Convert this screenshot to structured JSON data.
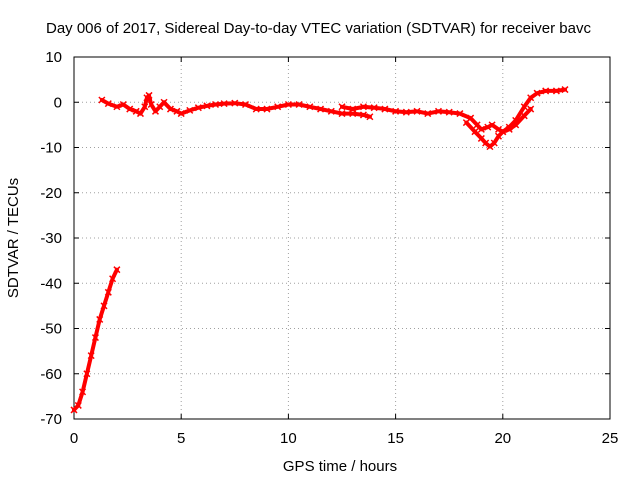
{
  "chart_data": {
    "type": "line",
    "title": "Day 006 of 2017, Sidereal Day-to-day VTEC variation (SDTVAR) for receiver bavc",
    "xlabel": "GPS time / hours",
    "ylabel": "SDTVAR / TECUs",
    "xlim": [
      0,
      25
    ],
    "ylim": [
      -70,
      10
    ],
    "xticks": [
      0,
      5,
      10,
      15,
      20,
      25
    ],
    "yticks": [
      10,
      0,
      -10,
      -20,
      -30,
      -40,
      -50,
      -60,
      -70
    ],
    "grid": true,
    "legend": "none",
    "series_color": "#ff0000",
    "series": [
      {
        "name": "segment-1",
        "x": [
          0.0,
          0.2,
          0.4,
          0.6,
          0.8,
          1.0,
          1.2,
          1.4,
          1.6,
          1.8,
          2.0
        ],
        "y": [
          -68,
          -67,
          -64,
          -60,
          -56,
          -52,
          -48,
          -45,
          -42,
          -39,
          -37
        ]
      },
      {
        "name": "segment-2",
        "x": [
          1.3,
          1.6,
          2.0,
          2.3,
          2.6,
          2.9,
          3.1,
          3.3,
          3.4,
          3.5,
          3.6,
          3.8,
          4.0,
          4.2,
          4.5,
          4.8,
          5.0,
          5.4,
          5.8,
          6.2,
          6.6,
          7.0,
          7.5,
          8.0,
          8.5,
          9.0,
          9.5,
          10.0,
          10.5,
          11.0,
          11.5,
          12.0,
          12.5,
          13.0,
          13.5,
          13.8
        ],
        "y": [
          0.5,
          -0.3,
          -1.0,
          -0.5,
          -1.5,
          -2.0,
          -2.5,
          -1.0,
          1.0,
          1.5,
          -0.5,
          -2.0,
          -1.0,
          0.0,
          -1.5,
          -2.0,
          -2.5,
          -1.8,
          -1.2,
          -0.8,
          -0.5,
          -0.3,
          -0.2,
          -0.5,
          -1.5,
          -1.5,
          -1.0,
          -0.5,
          -0.5,
          -1.0,
          -1.5,
          -2.0,
          -2.5,
          -2.5,
          -2.8,
          -3.2
        ]
      },
      {
        "name": "segment-3",
        "x": [
          12.5,
          13.0,
          13.5,
          14.0,
          14.5,
          15.0,
          15.5,
          16.0,
          16.5,
          17.0,
          17.5,
          18.0,
          18.5,
          18.8,
          19.0,
          19.3,
          19.5,
          19.8,
          20.0,
          20.3,
          20.6,
          21.0,
          21.3,
          21.6,
          22.0,
          22.5,
          22.9
        ],
        "y": [
          -1.0,
          -1.5,
          -1.0,
          -1.2,
          -1.5,
          -2.0,
          -2.2,
          -2.0,
          -2.5,
          -2.0,
          -2.2,
          -2.5,
          -3.5,
          -5.0,
          -6.0,
          -5.5,
          -5.0,
          -6.0,
          -6.5,
          -5.5,
          -4.0,
          -1.0,
          1.0,
          2.0,
          2.5,
          2.5,
          2.8
        ]
      },
      {
        "name": "segment-4",
        "x": [
          18.3,
          18.7,
          19.0,
          19.2,
          19.4,
          19.6,
          19.8,
          20.0,
          20.3,
          20.6,
          21.0,
          21.3
        ],
        "y": [
          -4.5,
          -6.5,
          -8.0,
          -9.0,
          -9.8,
          -9.0,
          -7.5,
          -6.5,
          -6.0,
          -5.0,
          -3.0,
          -1.5
        ]
      }
    ]
  }
}
